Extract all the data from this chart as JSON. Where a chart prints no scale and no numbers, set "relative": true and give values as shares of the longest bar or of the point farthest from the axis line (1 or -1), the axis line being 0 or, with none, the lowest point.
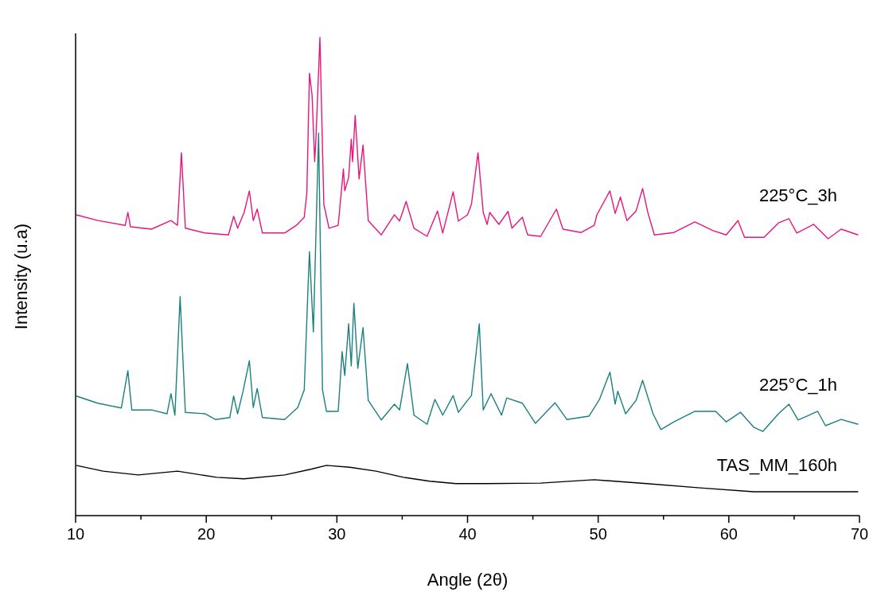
{
  "chart_data": {
    "type": "line",
    "xlabel": "Angle (2θ)",
    "ylabel": "Intensity (u.a)",
    "relative": true,
    "grid": false,
    "xlim": [
      10,
      70
    ],
    "xticks": [
      10,
      {
        "value": 15,
        "label": null
      },
      20,
      {
        "value": 25,
        "label": null
      },
      30,
      {
        "value": 35,
        "label": null
      },
      40,
      {
        "value": 45,
        "label": null
      },
      50,
      {
        "value": 55,
        "label": null
      },
      60,
      {
        "value": 65,
        "label": null
      },
      70
    ],
    "series": [
      {
        "name": "225°C_3h",
        "color": "#e8157f",
        "x": [
          10.05,
          11.7,
          13.8,
          14.0,
          14.2,
          15.8,
          17.3,
          17.8,
          18.1,
          18.4,
          19.9,
          21.7,
          22.1,
          22.4,
          22.9,
          23.3,
          23.6,
          23.9,
          24.3,
          26.0,
          26.9,
          27.5,
          27.7,
          27.9,
          28.1,
          28.3,
          28.4,
          28.7,
          29.0,
          29.4,
          30.1,
          30.5,
          30.6,
          30.9,
          31.1,
          31.2,
          31.4,
          31.7,
          32.0,
          32.4,
          33.4,
          34.4,
          34.8,
          35.3,
          35.9,
          36.9,
          37.7,
          38.1,
          38.9,
          39.3,
          40.0,
          40.3,
          40.8,
          41.2,
          41.5,
          41.7,
          42.4,
          43.1,
          43.4,
          44.2,
          44.6,
          45.6,
          46.8,
          47.3,
          48.7,
          49.7,
          49.9,
          50.9,
          51.3,
          51.7,
          52.2,
          52.9,
          53.4,
          53.8,
          54.3,
          55.8,
          57.4,
          58.8,
          59.8,
          60.7,
          61.2,
          62.7,
          63.8,
          64.6,
          65.2,
          66.5,
          67.6,
          68.6,
          69.9
        ],
        "values": [
          0.629,
          0.617,
          0.607,
          0.634,
          0.604,
          0.599,
          0.617,
          0.607,
          0.759,
          0.601,
          0.591,
          0.587,
          0.626,
          0.601,
          0.634,
          0.679,
          0.617,
          0.641,
          0.591,
          0.591,
          0.607,
          0.624,
          0.674,
          0.925,
          0.879,
          0.74,
          0.79,
          1.0,
          0.651,
          0.601,
          0.607,
          0.725,
          0.679,
          0.707,
          0.787,
          0.74,
          0.837,
          0.704,
          0.775,
          0.617,
          0.587,
          0.629,
          0.616,
          0.657,
          0.601,
          0.584,
          0.637,
          0.591,
          0.677,
          0.616,
          0.629,
          0.651,
          0.759,
          0.634,
          0.609,
          0.634,
          0.609,
          0.636,
          0.601,
          0.624,
          0.587,
          0.584,
          0.641,
          0.599,
          0.592,
          0.607,
          0.629,
          0.679,
          0.632,
          0.666,
          0.617,
          0.637,
          0.684,
          0.634,
          0.587,
          0.592,
          0.614,
          0.596,
          0.587,
          0.617,
          0.582,
          0.582,
          0.612,
          0.621,
          0.591,
          0.609,
          0.579,
          0.599,
          0.587
        ]
      },
      {
        "name": "225°C_1h",
        "color": "#1a8080",
        "x": [
          10.05,
          11.7,
          13.5,
          14.0,
          14.3,
          15.8,
          17.0,
          17.3,
          17.6,
          18.0,
          18.4,
          19.9,
          20.7,
          21.8,
          22.1,
          22.4,
          22.8,
          23.3,
          23.6,
          23.9,
          24.3,
          26.0,
          27.0,
          27.5,
          27.8,
          27.9,
          28.2,
          28.6,
          28.9,
          29.2,
          30.1,
          30.4,
          30.6,
          30.9,
          31.1,
          31.3,
          31.6,
          32.0,
          32.4,
          33.4,
          34.4,
          34.8,
          35.4,
          35.9,
          36.9,
          37.5,
          38.1,
          38.9,
          39.3,
          40.0,
          40.3,
          40.9,
          41.2,
          41.8,
          42.6,
          43.0,
          44.2,
          45.2,
          46.7,
          47.6,
          49.3,
          50.1,
          50.9,
          51.3,
          51.5,
          52.1,
          52.9,
          53.4,
          54.2,
          54.8,
          55.8,
          57.4,
          59.0,
          59.8,
          60.9,
          61.9,
          62.6,
          63.8,
          64.6,
          65.3,
          66.8,
          67.4,
          68.6,
          69.9
        ],
        "values": [
          0.25,
          0.235,
          0.225,
          0.303,
          0.221,
          0.221,
          0.213,
          0.255,
          0.21,
          0.458,
          0.216,
          0.213,
          0.201,
          0.205,
          0.25,
          0.213,
          0.258,
          0.324,
          0.226,
          0.266,
          0.205,
          0.201,
          0.226,
          0.263,
          0.484,
          0.552,
          0.384,
          0.8,
          0.263,
          0.218,
          0.218,
          0.343,
          0.293,
          0.401,
          0.313,
          0.444,
          0.308,
          0.393,
          0.241,
          0.2,
          0.233,
          0.221,
          0.318,
          0.21,
          0.191,
          0.243,
          0.21,
          0.251,
          0.216,
          0.241,
          0.251,
          0.401,
          0.221,
          0.255,
          0.21,
          0.246,
          0.235,
          0.193,
          0.236,
          0.201,
          0.208,
          0.243,
          0.3,
          0.233,
          0.26,
          0.213,
          0.241,
          0.283,
          0.213,
          0.18,
          0.196,
          0.218,
          0.218,
          0.196,
          0.216,
          0.185,
          0.176,
          0.213,
          0.233,
          0.2,
          0.218,
          0.188,
          0.201,
          0.191
        ]
      },
      {
        "name": "TAS_MM_160h",
        "color": "#000000",
        "x": [
          10.05,
          12.1,
          14.8,
          17.8,
          20.8,
          22.9,
          26.0,
          28.0,
          29.2,
          31.0,
          33.0,
          35.1,
          37.1,
          39.1,
          41.5,
          45.6,
          49.7,
          53.7,
          57.8,
          61.9,
          65.9,
          69.9
        ],
        "values": [
          0.105,
          0.093,
          0.085,
          0.093,
          0.08,
          0.077,
          0.085,
          0.097,
          0.105,
          0.101,
          0.093,
          0.08,
          0.072,
          0.067,
          0.067,
          0.068,
          0.075,
          0.067,
          0.058,
          0.05,
          0.05,
          0.05
        ]
      }
    ]
  }
}
